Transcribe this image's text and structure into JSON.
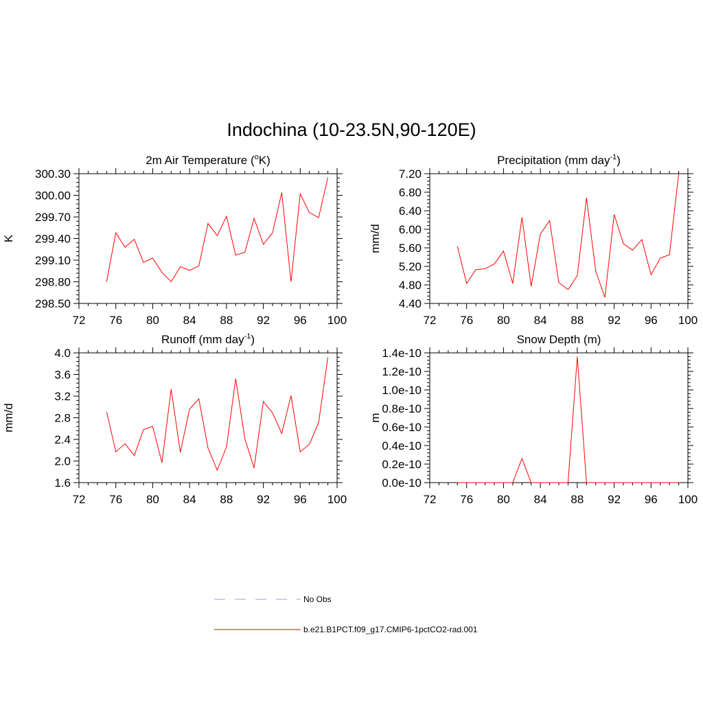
{
  "title": "Indochina (10-23.5N,90-120E)",
  "legend": {
    "items": [
      {
        "label": "No Obs",
        "color": "#9999ff",
        "style": "dashed"
      },
      {
        "label": "b.e21.B1PCT.f09_g17.CMIP6-1pctCO2-rad.001",
        "color": "#ff0000",
        "style": "solid"
      }
    ]
  },
  "chart_data": [
    {
      "type": "line",
      "title": "2m Air Temperature (",
      "title_sup": "o",
      "title_tail": "K)",
      "xlabel": "",
      "ylabel": "K",
      "xlim": [
        72,
        100
      ],
      "ylim": [
        298.5,
        300.3
      ],
      "xticks": [
        72,
        76,
        80,
        84,
        88,
        92,
        96,
        100
      ],
      "yticks": [
        "298.50",
        "298.80",
        "299.10",
        "299.40",
        "299.70",
        "300.00",
        "300.30"
      ],
      "grid": false,
      "series": [
        {
          "x": [
            75,
            76,
            77,
            78,
            79,
            80,
            81,
            82,
            83,
            84,
            85,
            86,
            87,
            88,
            89,
            90,
            91,
            92,
            93,
            94,
            95,
            96,
            97,
            98,
            99
          ],
          "values": [
            298.8,
            299.48,
            299.28,
            299.39,
            299.07,
            299.13,
            298.93,
            298.8,
            299.01,
            298.96,
            299.02,
            299.61,
            299.44,
            299.71,
            299.17,
            299.21,
            299.68,
            299.32,
            299.48,
            300.04,
            298.8,
            300.02,
            299.76,
            299.69,
            300.25
          ],
          "color": "#ff0000"
        }
      ]
    },
    {
      "type": "line",
      "title": "Precipitation (mm day",
      "title_sup": "-1",
      "title_tail": ")",
      "xlabel": "",
      "ylabel": "mm/d",
      "xlim": [
        72,
        100
      ],
      "ylim": [
        4.4,
        7.2
      ],
      "xticks": [
        72,
        76,
        80,
        84,
        88,
        92,
        96,
        100
      ],
      "yticks": [
        "4.40",
        "4.80",
        "5.20",
        "5.60",
        "6.00",
        "6.40",
        "6.80",
        "7.20"
      ],
      "grid": false,
      "series": [
        {
          "x": [
            75,
            76,
            77,
            78,
            79,
            80,
            81,
            82,
            83,
            84,
            85,
            86,
            87,
            88,
            89,
            90,
            91,
            92,
            93,
            94,
            95,
            96,
            97,
            98,
            99
          ],
          "values": [
            5.63,
            4.83,
            5.13,
            5.15,
            5.25,
            5.53,
            4.83,
            6.26,
            4.77,
            5.9,
            6.19,
            4.85,
            4.7,
            5.0,
            6.68,
            5.1,
            4.53,
            6.32,
            5.69,
            5.55,
            5.78,
            5.02,
            5.38,
            5.45,
            7.2
          ],
          "color": "#ff0000"
        }
      ]
    },
    {
      "type": "line",
      "title": "Runoff (mm day",
      "title_sup": "-1",
      "title_tail": ")",
      "xlabel": "",
      "ylabel": "mm/d",
      "xlim": [
        72,
        100
      ],
      "ylim": [
        1.6,
        4.0
      ],
      "xticks": [
        72,
        76,
        80,
        84,
        88,
        92,
        96,
        100
      ],
      "yticks": [
        "1.6",
        "2.0",
        "2.4",
        "2.8",
        "3.2",
        "3.6",
        "4.0"
      ],
      "grid": false,
      "series": [
        {
          "x": [
            75,
            76,
            77,
            78,
            79,
            80,
            81,
            82,
            83,
            84,
            85,
            86,
            87,
            88,
            89,
            90,
            91,
            92,
            93,
            94,
            95,
            96,
            97,
            98,
            99
          ],
          "values": [
            2.91,
            2.17,
            2.32,
            2.1,
            2.58,
            2.64,
            1.97,
            3.33,
            2.16,
            2.96,
            3.15,
            2.24,
            1.83,
            2.26,
            3.52,
            2.41,
            1.87,
            3.1,
            2.89,
            2.51,
            3.21,
            2.17,
            2.31,
            2.71,
            3.92
          ],
          "color": "#ff0000"
        }
      ]
    },
    {
      "type": "line",
      "title": "Snow Depth (m)",
      "title_sup": "",
      "title_tail": "",
      "xlabel": "",
      "ylabel": "m",
      "xlim": [
        72,
        100
      ],
      "ylim": [
        0,
        1.4e-10
      ],
      "xticks": [
        72,
        76,
        80,
        84,
        88,
        92,
        96,
        100
      ],
      "yticks": [
        "0.0e-10",
        "0.2e-10",
        "0.4e-10",
        "0.6e-10",
        "0.8e-10",
        "1.0e-10",
        "1.2e-10",
        "1.4e-10"
      ],
      "grid": false,
      "series": [
        {
          "x": [
            75,
            76,
            77,
            78,
            79,
            80,
            81,
            82,
            83,
            84,
            85,
            86,
            87,
            88,
            89,
            90,
            91,
            92,
            93,
            94,
            95,
            96,
            97,
            98,
            99
          ],
          "values": [
            0,
            0,
            0,
            0,
            0,
            0,
            0,
            2.6e-11,
            0,
            0,
            0,
            0,
            0,
            1.36e-10,
            0,
            0,
            0,
            0,
            0,
            0,
            0,
            0,
            0,
            0,
            0
          ],
          "color": "#ff0000"
        }
      ]
    }
  ]
}
